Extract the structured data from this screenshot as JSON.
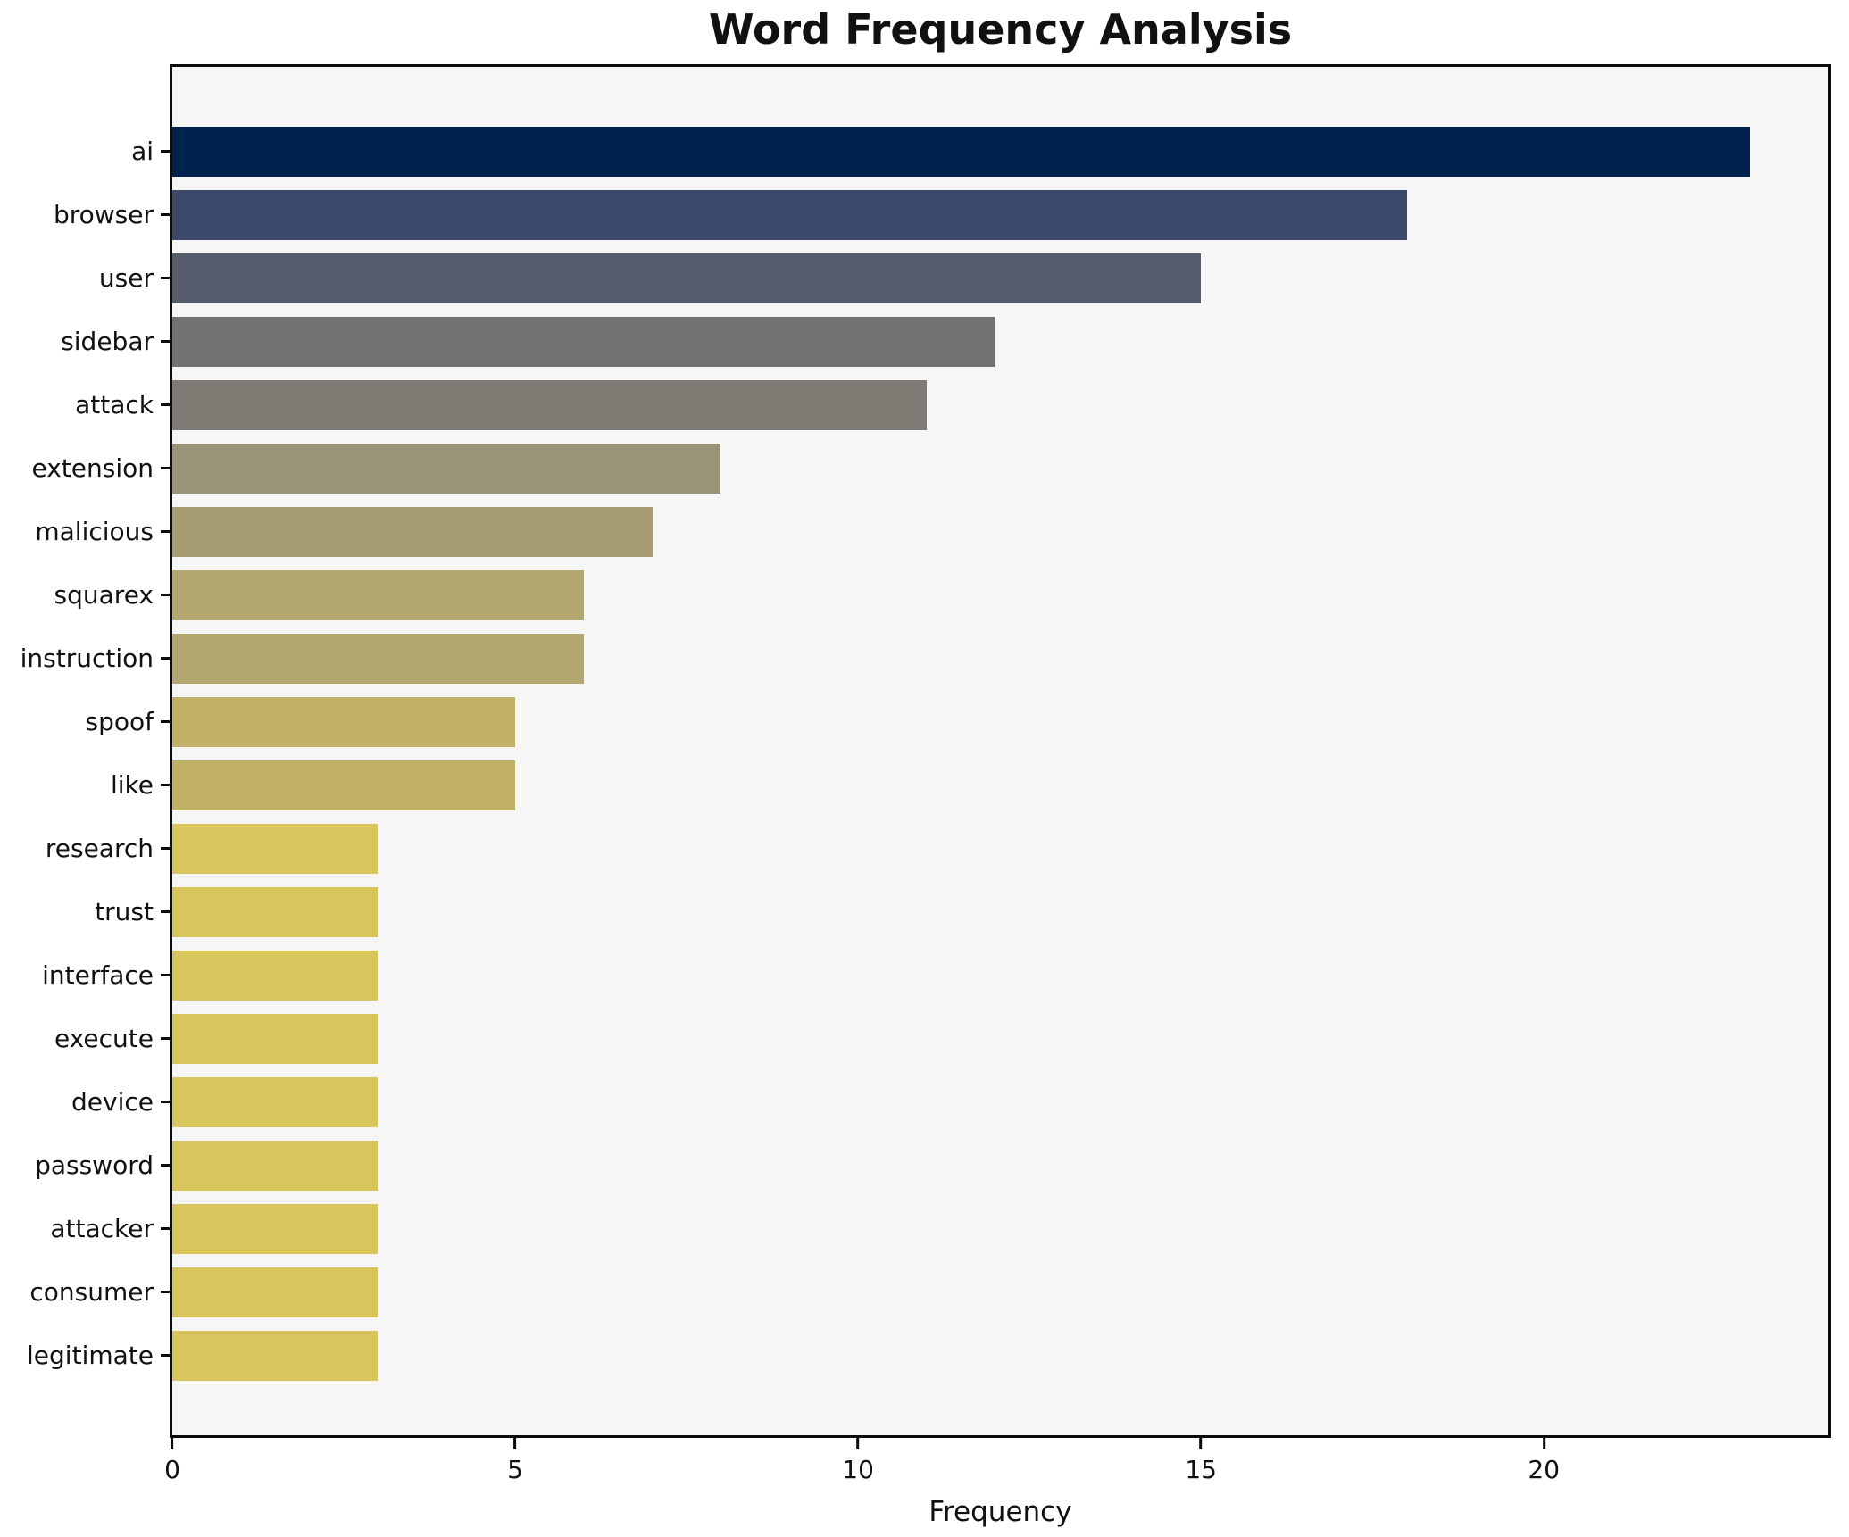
{
  "chart_data": {
    "type": "bar",
    "orientation": "horizontal",
    "title": "Word Frequency Analysis",
    "xlabel": "Frequency",
    "ylabel": "",
    "categories": [
      "ai",
      "browser",
      "user",
      "sidebar",
      "attack",
      "extension",
      "malicious",
      "squarex",
      "instruction",
      "spoof",
      "like",
      "research",
      "trust",
      "interface",
      "execute",
      "device",
      "password",
      "attacker",
      "consumer",
      "legitimate"
    ],
    "values": [
      23,
      18,
      15,
      12,
      11,
      8,
      7,
      6,
      6,
      5,
      5,
      3,
      3,
      3,
      3,
      3,
      3,
      3,
      3,
      3
    ],
    "bar_colors": [
      "#00224e",
      "#3b4a6b",
      "#575d6d",
      "#717274",
      "#7e7b75",
      "#9a9377",
      "#a69d74",
      "#b1a76f",
      "#b1a76f",
      "#c0b167",
      "#c0b167",
      "#d8c55c",
      "#d8c55c",
      "#d8c55c",
      "#d8c55c",
      "#d8c55c",
      "#d8c55c",
      "#d8c55c",
      "#d8c55c",
      "#d8c55c"
    ],
    "xlim": [
      0,
      24.15
    ],
    "xticks": [
      0,
      5,
      10,
      15,
      20
    ],
    "grid": false,
    "legend": "none",
    "colormap": "cividis",
    "plot_background": "#f6f6f6",
    "figure_background": "#ffffff",
    "spine_color": "#0c0c0c"
  }
}
